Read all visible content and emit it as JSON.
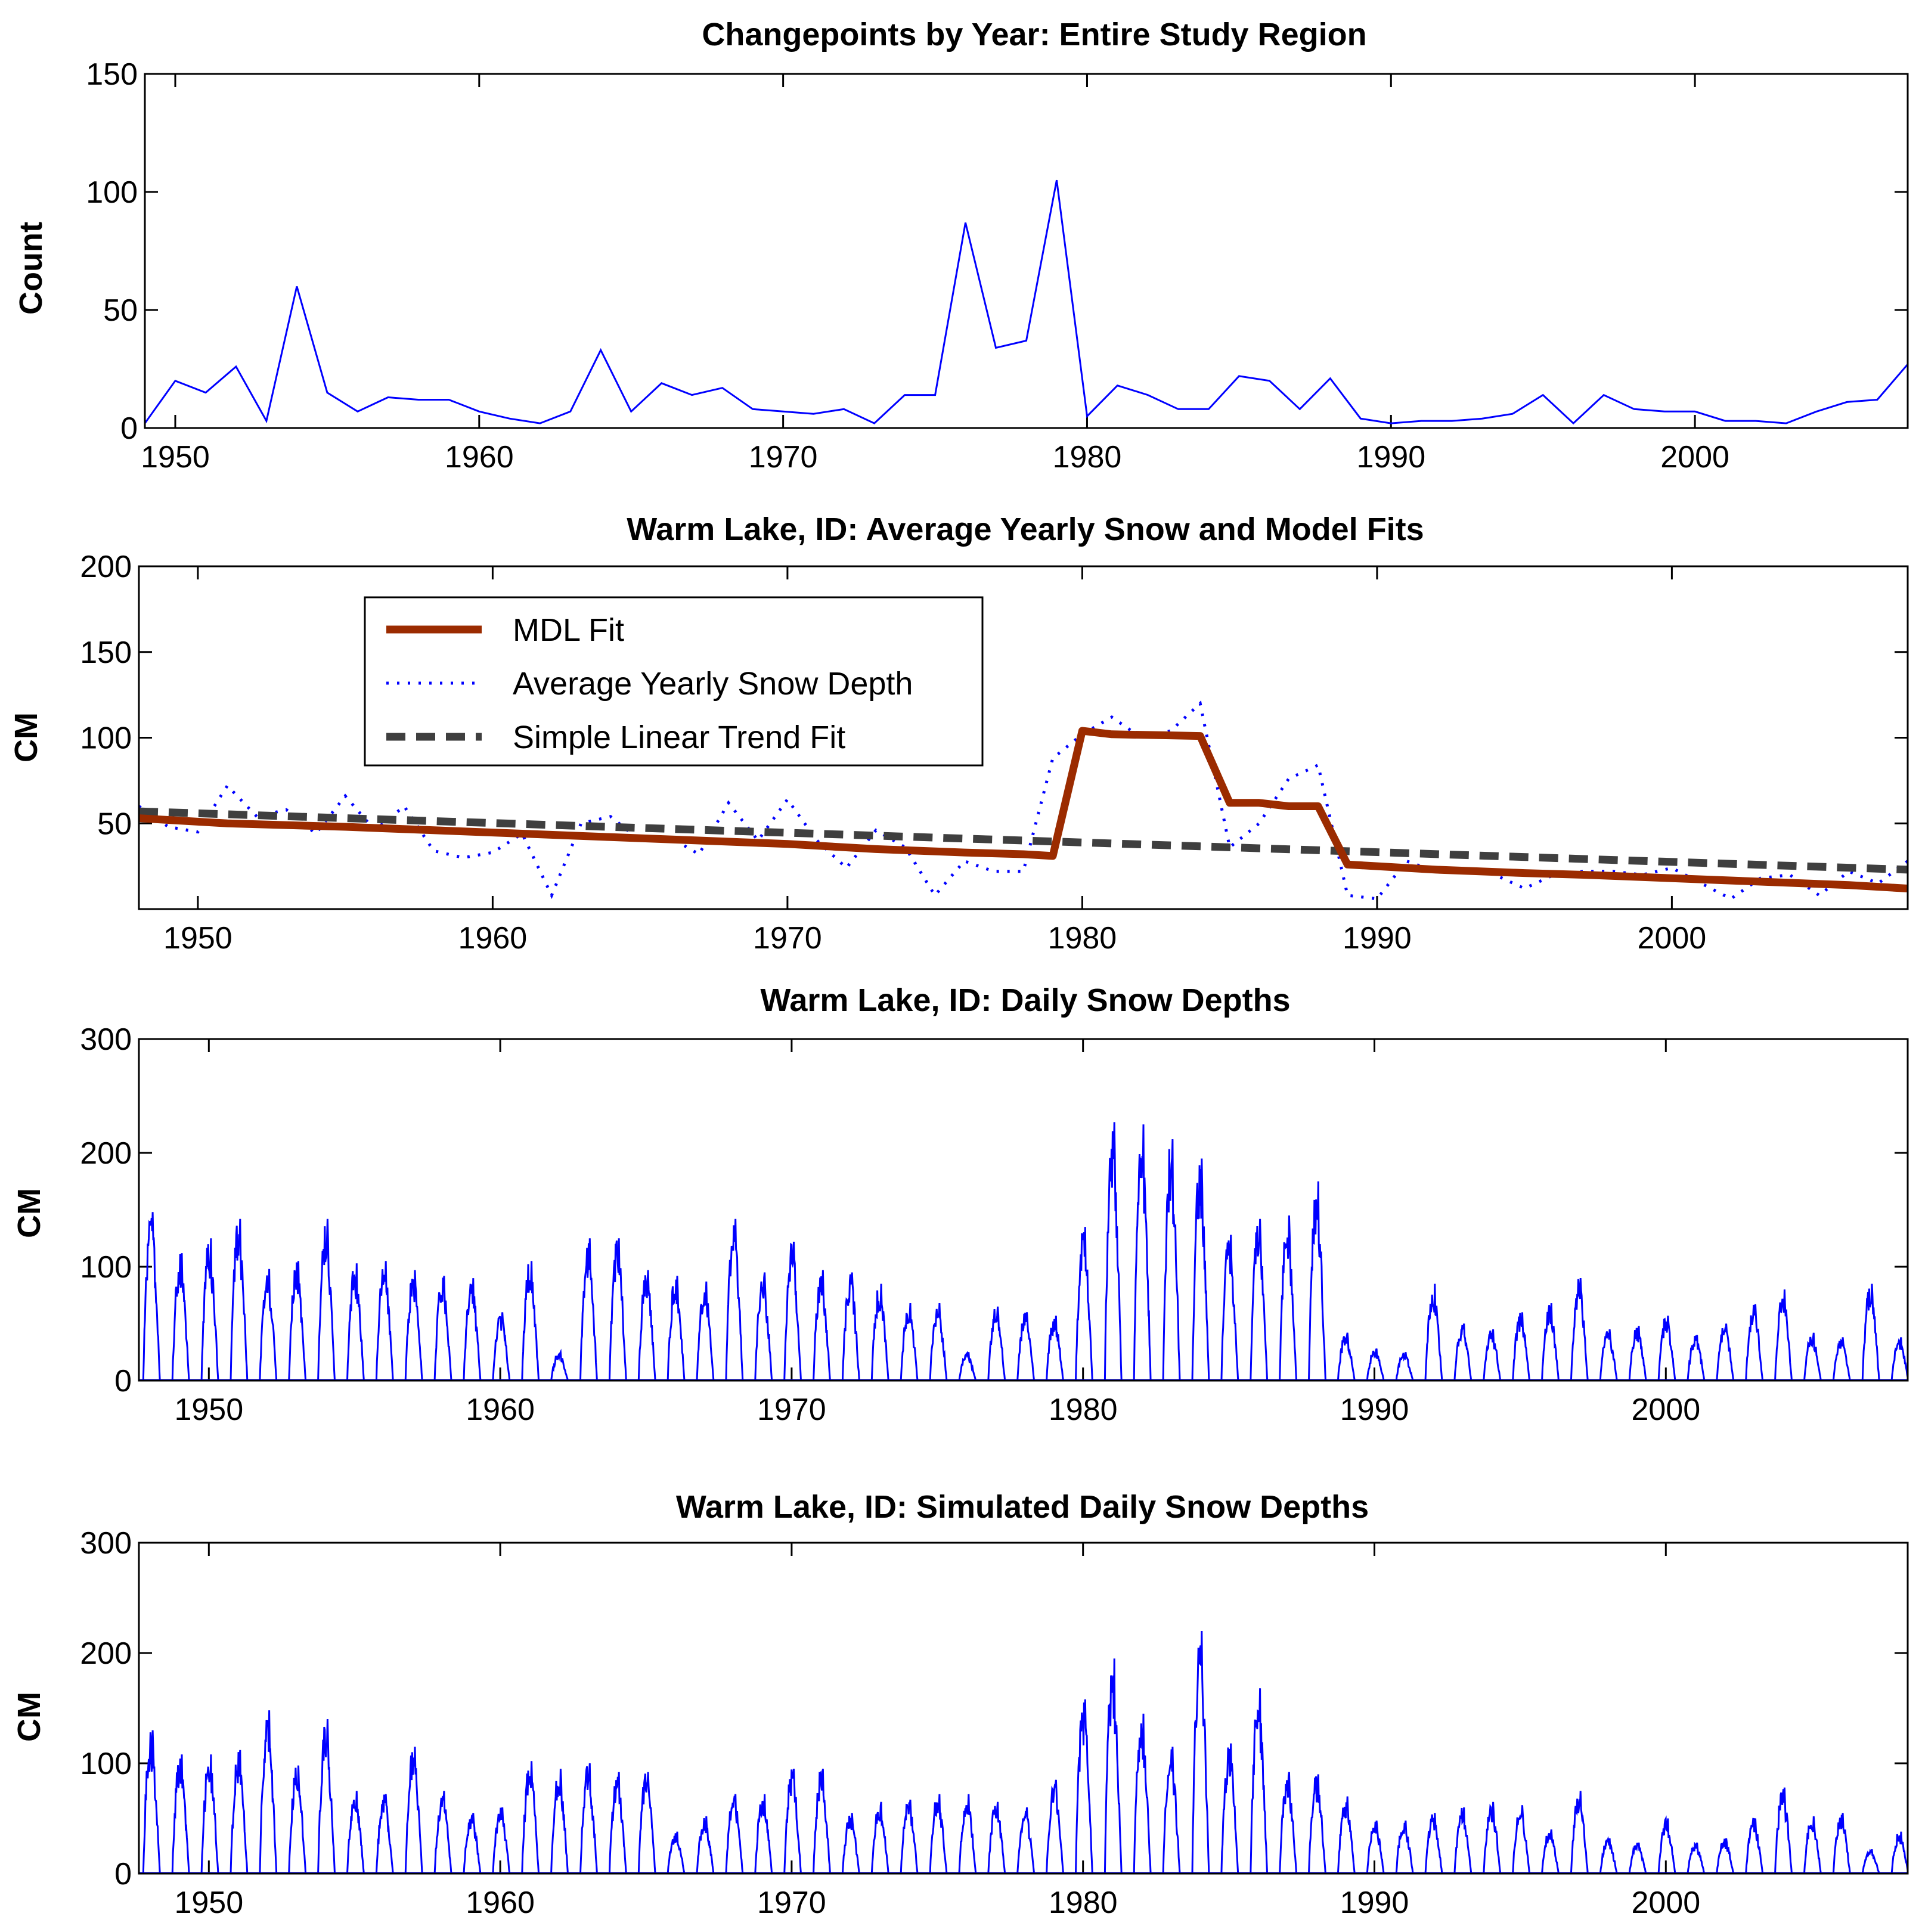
{
  "colors": {
    "series_blue": "#0000ff",
    "mdl": "#9b2b00",
    "trend": "#3f3f3f",
    "axis": "#000000"
  },
  "chart_data": [
    {
      "type": "line",
      "title": "Changepoints by Year: Entire Study Region",
      "xlabel": "",
      "ylabel": "Count",
      "xlim": [
        1949,
        2007
      ],
      "ylim": [
        0,
        150
      ],
      "xticks": [
        1950,
        1960,
        1970,
        1980,
        1990,
        2000
      ],
      "yticks": [
        0,
        50,
        100,
        150
      ],
      "series": [
        {
          "name": "Changepoints",
          "x": [
            1949,
            1950,
            1951,
            1952,
            1953,
            1954,
            1955,
            1956,
            1957,
            1958,
            1959,
            1960,
            1961,
            1962,
            1963,
            1964,
            1965,
            1966,
            1967,
            1968,
            1969,
            1970,
            1971,
            1972,
            1973,
            1974,
            1975,
            1976,
            1977,
            1978,
            1979,
            1980,
            1981,
            1982,
            1983,
            1984,
            1985,
            1986,
            1987,
            1988,
            1989,
            1990,
            1991,
            1992,
            1993,
            1994,
            1995,
            1996,
            1997,
            1998,
            1999,
            2000,
            2001,
            2002,
            2003,
            2004,
            2005,
            2006,
            2007
          ],
          "values": [
            2,
            20,
            15,
            26,
            3,
            60,
            15,
            7,
            13,
            12,
            12,
            7,
            4,
            2,
            7,
            33,
            7,
            19,
            14,
            17,
            8,
            7,
            6,
            8,
            2,
            14,
            14,
            87,
            34,
            37,
            105,
            5,
            18,
            14,
            8,
            8,
            22,
            20,
            8,
            21,
            4,
            2,
            3,
            3,
            4,
            6,
            14,
            2,
            14,
            8,
            7,
            7,
            3,
            3,
            2,
            7,
            11,
            12,
            27
          ]
        }
      ]
    },
    {
      "type": "line",
      "title": "Warm Lake, ID: Average Yearly Snow and Model Fits",
      "xlabel": "",
      "ylabel": "CM",
      "xlim": [
        1948,
        2008
      ],
      "ylim": [
        0,
        200
      ],
      "xticks": [
        1950,
        1960,
        1970,
        1980,
        1990,
        2000
      ],
      "yticks": [
        50,
        100,
        150,
        200
      ],
      "legend": "upper-left",
      "series": [
        {
          "name": "MDL Fit",
          "x": [
            1948,
            1951,
            1955,
            1958,
            1961,
            1964,
            1967,
            1970,
            1973,
            1976,
            1978,
            1979,
            1980,
            1981,
            1984,
            1985,
            1986,
            1987,
            1988,
            1989,
            1990,
            1992,
            1995,
            1997,
            2000,
            2003,
            2006,
            2008
          ],
          "values": [
            53,
            50,
            48,
            46,
            44,
            42,
            40,
            38,
            35,
            33,
            32,
            31,
            104,
            102,
            101,
            62,
            62,
            60,
            60,
            26,
            25,
            23,
            21,
            20,
            18,
            16,
            14,
            12
          ]
        },
        {
          "name": "Average Yearly Snow Depth",
          "x": [
            1948,
            1949,
            1950,
            1951,
            1952,
            1953,
            1954,
            1955,
            1956,
            1957,
            1958,
            1959,
            1960,
            1961,
            1962,
            1963,
            1964,
            1965,
            1966,
            1967,
            1968,
            1969,
            1970,
            1971,
            1972,
            1973,
            1974,
            1975,
            1976,
            1977,
            1978,
            1979,
            1980,
            1981,
            1982,
            1983,
            1984,
            1985,
            1986,
            1987,
            1988,
            1989,
            1990,
            1991,
            1992,
            1993,
            1994,
            1995,
            1996,
            1997,
            1998,
            1999,
            2000,
            2001,
            2002,
            2003,
            2004,
            2005,
            2006,
            2007,
            2008
          ],
          "values": [
            60,
            48,
            45,
            72,
            54,
            58,
            44,
            66,
            46,
            60,
            34,
            30,
            33,
            44,
            8,
            50,
            54,
            40,
            42,
            32,
            62,
            40,
            64,
            40,
            24,
            46,
            36,
            8,
            28,
            22,
            22,
            88,
            102,
            112,
            100,
            104,
            120,
            36,
            50,
            76,
            84,
            8,
            6,
            28,
            22,
            24,
            20,
            12,
            20,
            22,
            22,
            20,
            24,
            15,
            6,
            18,
            20,
            8,
            22,
            15,
            28
          ]
        },
        {
          "name": "Simple Linear Trend Fit",
          "x": [
            1948,
            2008
          ],
          "values": [
            57,
            23
          ]
        }
      ]
    },
    {
      "type": "line",
      "title": "Warm Lake, ID: Daily Snow Depths",
      "xlabel": "",
      "ylabel": "CM",
      "xlim": [
        1947.6,
        2008.3
      ],
      "ylim": [
        0,
        300
      ],
      "xticks": [
        1950,
        1960,
        1970,
        1980,
        1990,
        2000
      ],
      "yticks": [
        0,
        100,
        200,
        300
      ],
      "series": [
        {
          "name": "Daily Snow Depth",
          "x": [
            1948,
            1949,
            1950,
            1951,
            1952,
            1953,
            1954,
            1955,
            1956,
            1957,
            1958,
            1959,
            1960,
            1961,
            1962,
            1963,
            1964,
            1965,
            1966,
            1967,
            1968,
            1969,
            1970,
            1971,
            1972,
            1973,
            1974,
            1975,
            1976,
            1977,
            1978,
            1979,
            1980,
            1981,
            1982,
            1983,
            1984,
            1985,
            1986,
            1987,
            1988,
            1989,
            1990,
            1991,
            1992,
            1993,
            1994,
            1995,
            1996,
            1997,
            1998,
            1999,
            2000,
            2001,
            2002,
            2003,
            2004,
            2005,
            2006,
            2007,
            2008
          ],
          "values": [
            148,
            112,
            125,
            142,
            98,
            105,
            142,
            103,
            105,
            97,
            92,
            90,
            60,
            105,
            25,
            125,
            125,
            97,
            92,
            87,
            142,
            95,
            122,
            97,
            95,
            85,
            68,
            68,
            25,
            65,
            60,
            57,
            135,
            227,
            225,
            212,
            195,
            128,
            142,
            145,
            175,
            42,
            28,
            25,
            85,
            50,
            45,
            60,
            68,
            90,
            45,
            48,
            57,
            40,
            50,
            67,
            80,
            42,
            38,
            85,
            38
          ]
        }
      ]
    },
    {
      "type": "line",
      "title": "Warm Lake, ID: Simulated Daily Snow Depths",
      "xlabel": "",
      "ylabel": "CM",
      "xlim": [
        1947.6,
        2008.3
      ],
      "ylim": [
        0,
        300
      ],
      "xticks": [
        1950,
        1960,
        1970,
        1980,
        1990,
        2000
      ],
      "yticks": [
        0,
        100,
        200,
        300
      ],
      "series": [
        {
          "name": "Simulated Daily Snow Depth",
          "x": [
            1948,
            1949,
            1950,
            1951,
            1952,
            1953,
            1954,
            1955,
            1956,
            1957,
            1958,
            1959,
            1960,
            1961,
            1962,
            1963,
            1964,
            1965,
            1966,
            1967,
            1968,
            1969,
            1970,
            1971,
            1972,
            1973,
            1974,
            1975,
            1976,
            1977,
            1978,
            1979,
            1980,
            1981,
            1982,
            1983,
            1984,
            1985,
            1986,
            1987,
            1988,
            1989,
            1990,
            1991,
            1992,
            1993,
            1994,
            1995,
            1996,
            1997,
            1998,
            1999,
            2000,
            2001,
            2002,
            2003,
            2004,
            2005,
            2006,
            2007,
            2008
          ],
          "values": [
            130,
            108,
            108,
            112,
            148,
            98,
            140,
            75,
            72,
            115,
            75,
            55,
            60,
            102,
            95,
            100,
            92,
            92,
            38,
            52,
            72,
            72,
            95,
            95,
            55,
            65,
            67,
            72,
            72,
            65,
            60,
            85,
            158,
            195,
            145,
            115,
            220,
            118,
            168,
            92,
            90,
            70,
            48,
            48,
            55,
            60,
            65,
            62,
            40,
            75,
            32,
            28,
            50,
            28,
            32,
            50,
            78,
            52,
            55,
            22,
            38
          ]
        }
      ]
    }
  ]
}
